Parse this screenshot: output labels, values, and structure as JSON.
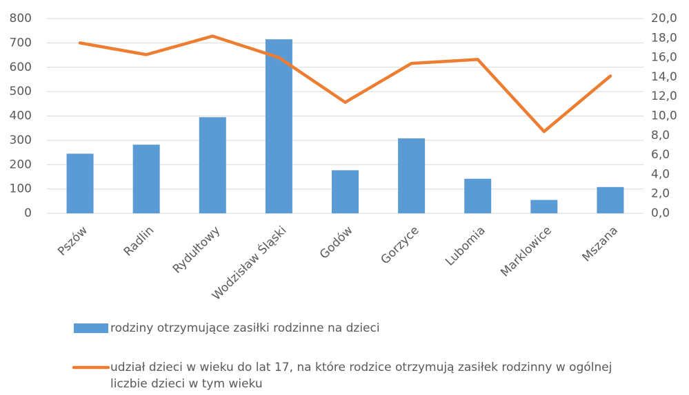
{
  "chart_data": {
    "type": "bar-line",
    "categories": [
      "Pszów",
      "Radlin",
      "Rydułtowy",
      "Wodzisław Śląski",
      "Godów",
      "Gorzyce",
      "Lubomia",
      "Marklowice",
      "Mszana"
    ],
    "series": [
      {
        "name": "rodziny otrzymujące zasiłki rodzinne na dzieci",
        "type": "bar",
        "color": "#5b9bd5",
        "values": [
          245,
          282,
          395,
          715,
          177,
          308,
          142,
          55,
          108
        ]
      },
      {
        "name": "udział dzieci w wieku do lat 17, na które rodzice otrzymują zasiłek rodzinny w ogólnej liczbie dzieci w tym wieku",
        "type": "line",
        "axis": "y2",
        "color": "#ed7d31",
        "values": [
          17.5,
          16.3,
          18.2,
          16.0,
          11.4,
          15.4,
          15.8,
          8.4,
          14.1
        ]
      }
    ],
    "ylim": [
      0,
      800
    ],
    "yticks": [
      0,
      100,
      200,
      300,
      400,
      500,
      600,
      700,
      800
    ],
    "y2lim": [
      0,
      20
    ],
    "y2ticks": [
      {
        "value": 0,
        "label": "0,0"
      },
      {
        "value": 2,
        "label": "2,0"
      },
      {
        "value": 4,
        "label": "4,0"
      },
      {
        "value": 6,
        "label": "6,0"
      },
      {
        "value": 8,
        "label": "8,0"
      },
      {
        "value": 10,
        "label": "10,0"
      },
      {
        "value": 12,
        "label": "12,0"
      },
      {
        "value": 14,
        "label": "14,0"
      },
      {
        "value": 16,
        "label": "16,0"
      },
      {
        "value": 18,
        "label": "18,0"
      },
      {
        "value": 20,
        "label": "20,0"
      }
    ],
    "grid": true
  }
}
